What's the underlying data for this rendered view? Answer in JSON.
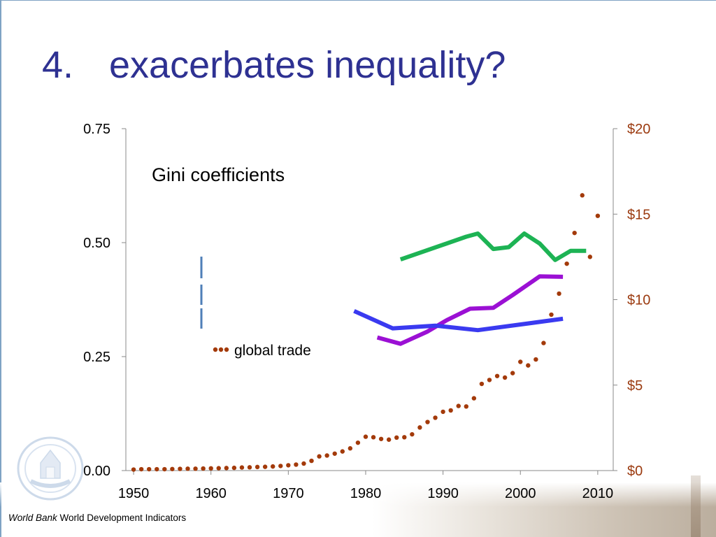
{
  "slide": {
    "title_number": "4.",
    "title_text": "exacerbates inequality?"
  },
  "source": {
    "org": "World Bank",
    "dataset": "World Development Indicators"
  },
  "colors": {
    "title": "#2e3192",
    "right_axis": "#9b3a0f",
    "global_trade": "#a33a0a",
    "green_series": "#1db354",
    "purple_series": "#9b10d4",
    "blue_series": "#3a3af0",
    "legend_bar": "#4f7fb8"
  },
  "chart_data": {
    "type": "line",
    "title": "Gini coefficients",
    "xlim": [
      1949,
      2012
    ],
    "x_ticks": [
      1950,
      1960,
      1970,
      1980,
      1990,
      2000,
      2010
    ],
    "x_tick_labels": [
      "1950",
      "1960",
      "1970",
      "1980",
      "1990",
      "2000",
      "2010"
    ],
    "y_left": {
      "lim": [
        0,
        0.75
      ],
      "ticks": [
        0,
        0.25,
        0.5,
        0.75
      ],
      "tick_labels": [
        "0.00",
        "0.25",
        "0.50",
        "0.75"
      ]
    },
    "y_right": {
      "lim": [
        0,
        20
      ],
      "ticks": [
        0,
        5,
        10,
        15,
        20
      ],
      "tick_labels": [
        "$0",
        "$5",
        "$10",
        "$15",
        "$20"
      ]
    },
    "series": [
      {
        "axis": "left",
        "style": "solid",
        "color": "#1db354",
        "x": [
          1984.5,
          1993,
          1994.5,
          1996.5,
          1998.5,
          2000.5,
          2002.5,
          2004.5,
          2006.5,
          2008.5
        ],
        "y": [
          0.463,
          0.513,
          0.52,
          0.486,
          0.49,
          0.52,
          0.498,
          0.462,
          0.482,
          0.482
        ]
      },
      {
        "axis": "left",
        "style": "solid",
        "color": "#9b10d4",
        "x": [
          1981.5,
          1984.5,
          1988,
          1990.5,
          1993.5,
          1996.5,
          1999,
          2002.5,
          2005.5
        ],
        "y": [
          0.292,
          0.278,
          0.305,
          0.33,
          0.355,
          0.357,
          0.385,
          0.426,
          0.425
        ]
      },
      {
        "axis": "left",
        "style": "solid",
        "color": "#3a3af0",
        "x": [
          1978.5,
          1983.5,
          1989,
          1994.5,
          2005.5
        ],
        "y": [
          0.35,
          0.312,
          0.318,
          0.308,
          0.333
        ]
      },
      {
        "name": "global trade",
        "axis": "right",
        "style": "dotted",
        "color": "#a33a0a",
        "x": [
          1950,
          1951,
          1952,
          1953,
          1954,
          1955,
          1956,
          1957,
          1958,
          1959,
          1960,
          1961,
          1962,
          1963,
          1964,
          1965,
          1966,
          1967,
          1968,
          1969,
          1970,
          1971,
          1972,
          1973,
          1974,
          1975,
          1976,
          1977,
          1978,
          1979,
          1980,
          1981,
          1982,
          1983,
          1984,
          1985,
          1986,
          1987,
          1988,
          1989,
          1990,
          1991,
          1992,
          1993,
          1994,
          1995,
          1996,
          1997,
          1998,
          1999,
          2000,
          2001,
          2002,
          2003,
          2004,
          2005,
          2006,
          2007,
          2008,
          2009,
          2010
        ],
        "y": [
          0.06,
          0.08,
          0.08,
          0.08,
          0.08,
          0.09,
          0.1,
          0.11,
          0.11,
          0.12,
          0.13,
          0.14,
          0.15,
          0.16,
          0.18,
          0.19,
          0.21,
          0.22,
          0.24,
          0.27,
          0.31,
          0.35,
          0.41,
          0.57,
          0.83,
          0.88,
          0.99,
          1.12,
          1.3,
          1.63,
          1.98,
          1.95,
          1.85,
          1.81,
          1.93,
          1.95,
          2.12,
          2.52,
          2.84,
          3.09,
          3.44,
          3.52,
          3.78,
          3.75,
          4.23,
          5.07,
          5.3,
          5.53,
          5.44,
          5.7,
          6.36,
          6.15,
          6.5,
          7.46,
          9.12,
          10.35,
          12.1,
          13.9,
          16.1,
          12.5,
          14.9
        ]
      }
    ],
    "legend": {
      "global_trade_label": "global trade",
      "bars": 3
    }
  }
}
